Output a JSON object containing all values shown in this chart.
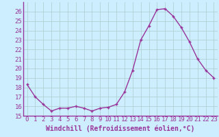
{
  "x": [
    0,
    1,
    2,
    3,
    4,
    5,
    6,
    7,
    8,
    9,
    10,
    11,
    12,
    13,
    14,
    15,
    16,
    17,
    18,
    19,
    20,
    21,
    22,
    23
  ],
  "y": [
    18.3,
    17.0,
    16.2,
    15.5,
    15.8,
    15.8,
    16.0,
    15.8,
    15.5,
    15.8,
    15.9,
    16.2,
    17.5,
    19.8,
    23.0,
    24.5,
    26.2,
    26.3,
    25.5,
    24.3,
    22.8,
    21.0,
    19.8,
    19.0
  ],
  "line_color": "#993399",
  "marker": "+",
  "marker_size": 3,
  "bg_color": "#cceeff",
  "grid_color": "#aacccc",
  "axis_color": "#993399",
  "tick_color": "#993399",
  "xlabel": "Windchill (Refroidissement éolien,°C)",
  "ylim": [
    15,
    27
  ],
  "xlim": [
    -0.5,
    23.5
  ],
  "yticks": [
    15,
    16,
    17,
    18,
    19,
    20,
    21,
    22,
    23,
    24,
    25,
    26
  ],
  "xticks": [
    0,
    1,
    2,
    3,
    4,
    5,
    6,
    7,
    8,
    9,
    10,
    11,
    12,
    13,
    14,
    15,
    16,
    17,
    18,
    19,
    20,
    21,
    22,
    23
  ],
  "xlabel_fontsize": 7,
  "tick_fontsize": 6.5,
  "line_width": 1.0
}
